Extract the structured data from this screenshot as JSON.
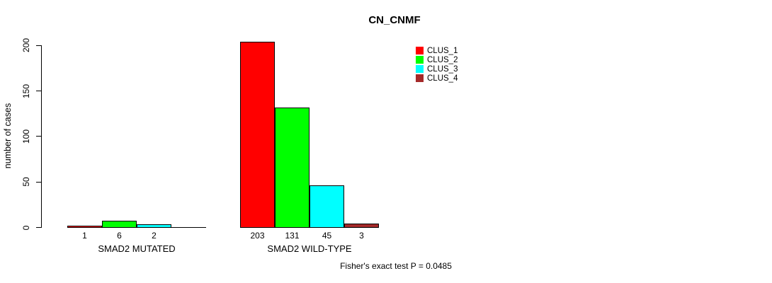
{
  "chart_data": {
    "type": "bar",
    "title": "CN_CNMF",
    "ylabel": "number of cases",
    "xlabel": "",
    "ylim": [
      0,
      200
    ],
    "yticks": [
      0,
      50,
      100,
      150,
      200
    ],
    "grid": false,
    "legend_position": "top-right",
    "series": [
      {
        "name": "CLUS_1",
        "color": "#ff0000"
      },
      {
        "name": "CLUS_2",
        "color": "#00ff00"
      },
      {
        "name": "CLUS_3",
        "color": "#00ffff"
      },
      {
        "name": "CLUS_4",
        "color": "#a52a2a"
      }
    ],
    "groups": [
      {
        "label": "SMAD2 MUTATED",
        "values": [
          1,
          6,
          2,
          0
        ],
        "value_labels": [
          "1",
          "6",
          "2",
          ""
        ]
      },
      {
        "label": "SMAD2 WILD-TYPE",
        "values": [
          203,
          131,
          45,
          3
        ],
        "value_labels": [
          "203",
          "131",
          "45",
          "3"
        ]
      }
    ],
    "footer": "Fisher's exact test P = 0.0485"
  }
}
